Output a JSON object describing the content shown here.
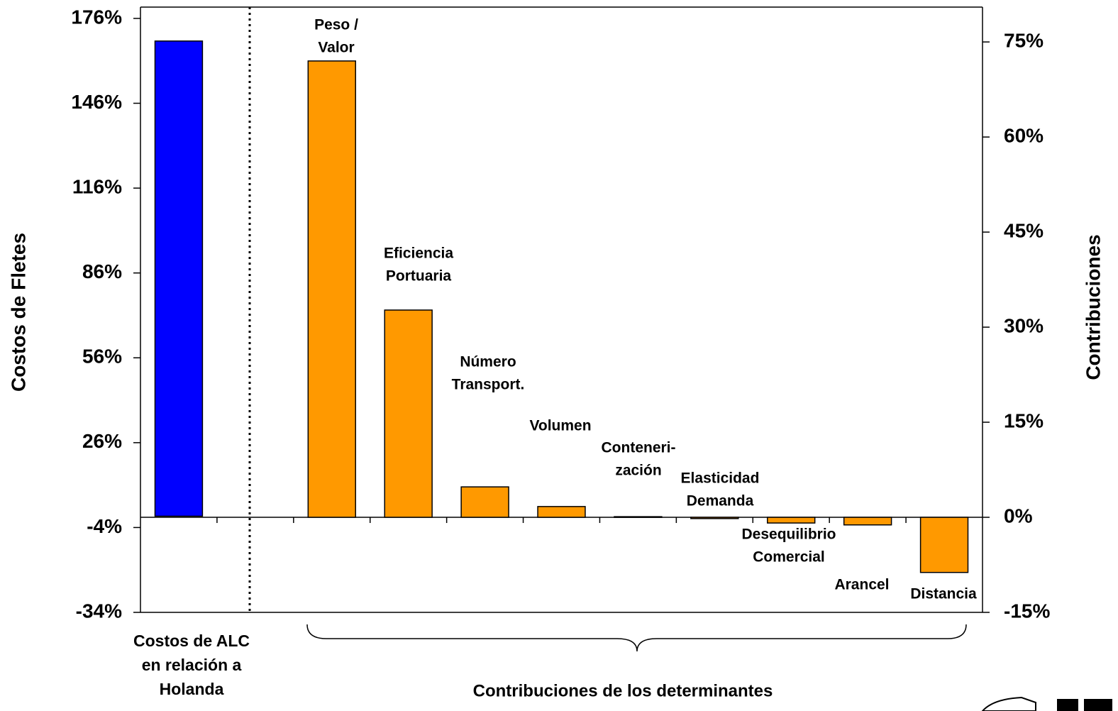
{
  "chart_data": {
    "type": "bar",
    "y_label": "Costos de Fletes",
    "y2_label": "Contribuciones",
    "x_label": "Contribuciones de los determinantes",
    "categories": [
      [
        "Costos de ALC",
        "en relación a",
        "Holanda"
      ],
      null,
      [
        "Peso /",
        "Valor"
      ],
      [
        "Eficiencia",
        "Portuaria"
      ],
      [
        "Número",
        "Transport."
      ],
      [
        "Volumen"
      ],
      [
        "Conteneri-",
        "zación"
      ],
      [
        "Elasticidad",
        "Demanda"
      ],
      [
        "Desequilibrio",
        "Comercial"
      ],
      [
        "Arancel"
      ],
      [
        "Distancia"
      ]
    ],
    "series": [
      {
        "color": "#0000ff",
        "values": [
          168,
          null,
          null,
          null,
          null,
          null,
          null,
          null,
          null,
          null,
          null
        ]
      },
      {
        "color": "#ff9900",
        "axis": "y2",
        "values": [
          null,
          null,
          72,
          32.7,
          4.8,
          1.7,
          0.1,
          -0.2,
          -0.9,
          -1.2,
          -8.7
        ]
      }
    ],
    "ylim": [
      -34,
      180
    ],
    "yticks": [
      {
        "value": -34,
        "label": "-34%"
      },
      {
        "value": -4,
        "label": "-4%"
      },
      {
        "value": 26,
        "label": "26%"
      },
      {
        "value": 56,
        "label": "56%"
      },
      {
        "value": 86,
        "label": "86%"
      },
      {
        "value": 116,
        "label": "116%"
      },
      {
        "value": 146,
        "label": "146%"
      },
      {
        "value": 176,
        "label": "176%"
      }
    ],
    "y2lim": [
      -15,
      80.5
    ],
    "y2ticks": [
      {
        "value": -15,
        "label": "-15%"
      },
      {
        "value": 0,
        "label": "0%"
      },
      {
        "value": 15,
        "label": "15%"
      },
      {
        "value": 30,
        "label": "30%"
      },
      {
        "value": 45,
        "label": "45%"
      },
      {
        "value": 60,
        "label": "60%"
      },
      {
        "value": 75,
        "label": "75%"
      }
    ]
  }
}
